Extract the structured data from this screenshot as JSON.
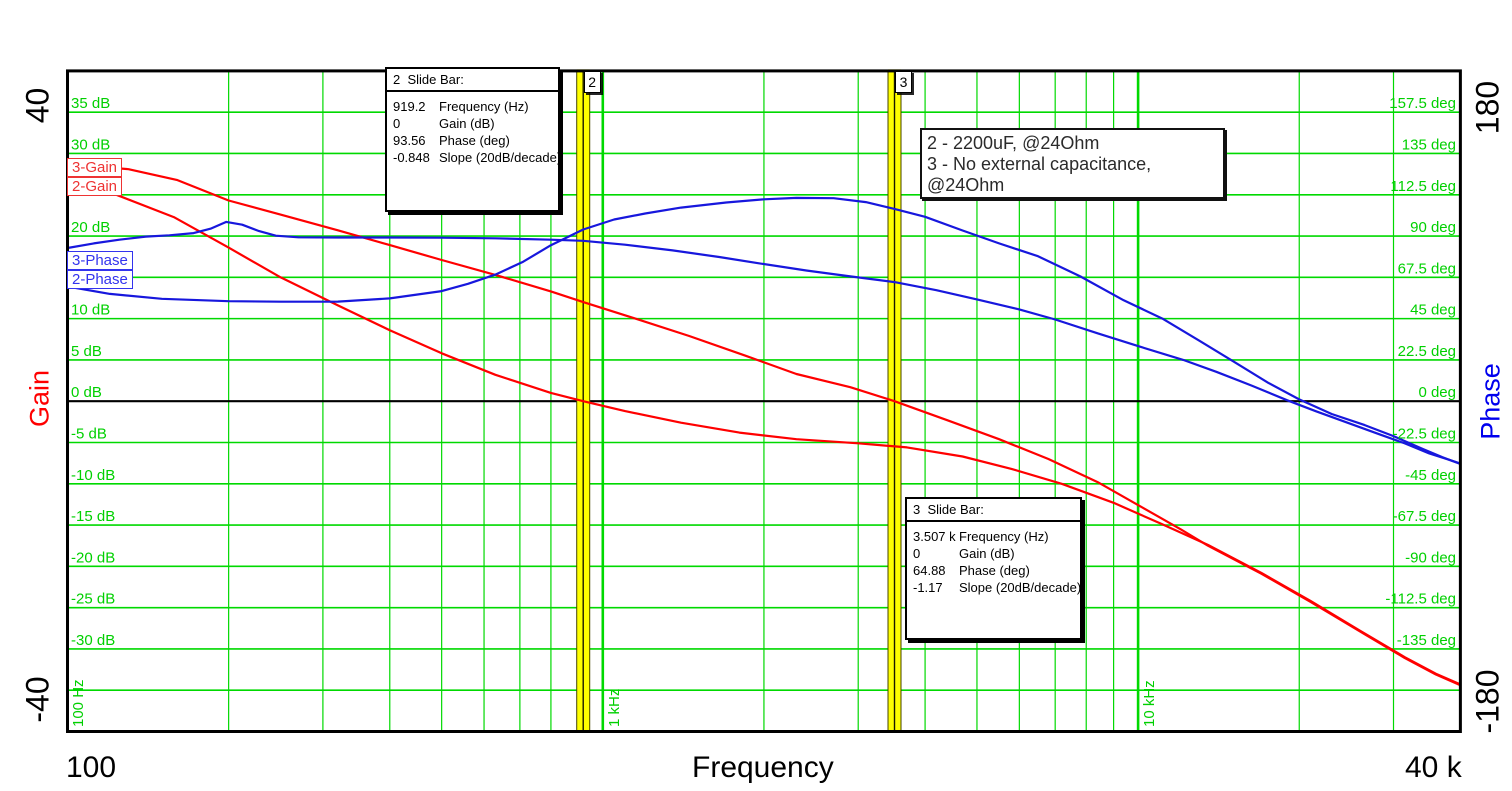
{
  "colors": {
    "grid_green": "#00d900",
    "tick_text_green": "#00d000",
    "gain_red": "#ff0000",
    "phase_blue": "#1717dd",
    "zero_line_black": "#000000",
    "slide_bar_yellow": "#ffff00",
    "background": "#ffffff"
  },
  "axes": {
    "gain": {
      "title": "Gain",
      "top_corner": "40",
      "bottom_corner": "-40",
      "min": -40,
      "max": 40
    },
    "phase": {
      "title": "Phase",
      "top_corner": "180",
      "bottom_corner": "-180",
      "min": -180,
      "max": 180
    },
    "freq": {
      "title": "Frequency",
      "left_label": "100",
      "right_label": "40 k",
      "min_hz": 100,
      "max_hz": 40000
    }
  },
  "chart_data": {
    "type": "line",
    "x_scale": "log",
    "x_range_hz": [
      100,
      40000
    ],
    "left_axis": {
      "label": "Gain",
      "units": "dB",
      "range": [
        -40,
        40
      ],
      "grid_step": 5
    },
    "right_axis": {
      "label": "Phase",
      "units": "deg",
      "range": [
        -180,
        180
      ],
      "grid_step": 22.5
    },
    "grid": {
      "h_lines_db": [
        35,
        30,
        25,
        20,
        15,
        10,
        5,
        0,
        -5,
        -10,
        -15,
        -20,
        -25,
        -30,
        -35
      ],
      "v_minor_hz": [
        200,
        300,
        400,
        500,
        600,
        700,
        800,
        900,
        2000,
        3000,
        4000,
        5000,
        6000,
        7000,
        8000,
        9000,
        20000,
        30000
      ],
      "v_major_hz": [
        1000,
        10000
      ]
    },
    "gain_tick_labels": [
      {
        "db": 35,
        "t": "35 dB"
      },
      {
        "db": 30,
        "t": "30 dB"
      },
      {
        "db": 25,
        "t": "25 dB"
      },
      {
        "db": 20,
        "t": "20 dB"
      },
      {
        "db": 15,
        "t": "15 dB"
      },
      {
        "db": 10,
        "t": "10 dB"
      },
      {
        "db": 5,
        "t": "5 dB"
      },
      {
        "db": 0,
        "t": "0 dB"
      },
      {
        "db": -5,
        "t": "-5 dB"
      },
      {
        "db": -10,
        "t": "-10 dB"
      },
      {
        "db": -15,
        "t": "-15 dB"
      },
      {
        "db": -20,
        "t": "-20 dB"
      },
      {
        "db": -25,
        "t": "-25 dB"
      },
      {
        "db": -30,
        "t": "-30 dB"
      }
    ],
    "phase_tick_labels": [
      {
        "deg": 157.5,
        "t": "157.5 deg"
      },
      {
        "deg": 135,
        "t": "135 deg"
      },
      {
        "deg": 112.5,
        "t": "112.5 deg"
      },
      {
        "deg": 90,
        "t": "90 deg"
      },
      {
        "deg": 67.5,
        "t": "67.5 deg"
      },
      {
        "deg": 45,
        "t": "45 deg"
      },
      {
        "deg": 22.5,
        "t": "22.5 deg"
      },
      {
        "deg": 0,
        "t": "0 deg"
      },
      {
        "deg": -22.5,
        "t": "-22.5 deg"
      },
      {
        "deg": -45,
        "t": "-45 deg"
      },
      {
        "deg": -67.5,
        "t": "-67.5 deg"
      },
      {
        "deg": -90,
        "t": "-90 deg"
      },
      {
        "deg": -112.5,
        "t": "-112.5 deg"
      },
      {
        "deg": -135,
        "t": "-135 deg"
      }
    ],
    "freq_line_labels": [
      {
        "hz": 100,
        "t": "100 Hz"
      },
      {
        "hz": 1000,
        "t": "1 kHz"
      },
      {
        "hz": 10000,
        "t": "10 kHz"
      }
    ],
    "series": [
      {
        "id": "curve-3-gain",
        "name": "3-Gain",
        "axis": "gain",
        "color": "#ff0000",
        "points": [
          [
            100,
            28.7
          ],
          [
            130,
            28.1
          ],
          [
            160,
            26.8
          ],
          [
            200,
            24.3
          ],
          [
            250,
            22.6
          ],
          [
            320,
            20.7
          ],
          [
            400,
            18.9
          ],
          [
            500,
            17.1
          ],
          [
            630,
            15.3
          ],
          [
            800,
            13.3
          ],
          [
            919.2,
            12.0
          ],
          [
            1150,
            10.0
          ],
          [
            1450,
            7.9
          ],
          [
            1850,
            5.5
          ],
          [
            2300,
            3.3
          ],
          [
            2900,
            1.7
          ],
          [
            3507,
            0.0
          ],
          [
            4400,
            -2.3
          ],
          [
            5500,
            -4.6
          ],
          [
            6800,
            -7.0
          ],
          [
            8400,
            -9.8
          ],
          [
            10200,
            -12.9
          ],
          [
            12000,
            -15.5
          ],
          [
            13500,
            -17.5
          ],
          [
            17000,
            -20.9
          ],
          [
            21000,
            -24.3
          ],
          [
            26000,
            -27.9
          ],
          [
            31500,
            -31.1
          ],
          [
            36000,
            -33.1
          ],
          [
            40000,
            -34.4
          ]
        ]
      },
      {
        "id": "curve-2-gain",
        "name": "2-Gain",
        "axis": "gain",
        "color": "#ff0000",
        "points": [
          [
            100,
            26.3
          ],
          [
            120,
            25.3
          ],
          [
            158,
            22.3
          ],
          [
            200,
            18.6
          ],
          [
            250,
            15.0
          ],
          [
            320,
            11.6
          ],
          [
            400,
            8.6
          ],
          [
            500,
            5.8
          ],
          [
            630,
            3.2
          ],
          [
            800,
            1.0
          ],
          [
            919.2,
            0.0
          ],
          [
            1100,
            -1.2
          ],
          [
            1400,
            -2.6
          ],
          [
            1800,
            -3.8
          ],
          [
            2300,
            -4.6
          ],
          [
            3000,
            -5.1
          ],
          [
            3700,
            -5.6
          ],
          [
            4700,
            -6.7
          ],
          [
            5800,
            -8.2
          ],
          [
            7200,
            -10.0
          ],
          [
            9000,
            -12.3
          ],
          [
            11000,
            -14.8
          ],
          [
            13500,
            -17.4
          ],
          [
            17000,
            -20.8
          ],
          [
            21000,
            -24.2
          ],
          [
            26000,
            -27.8
          ],
          [
            31500,
            -31.0
          ],
          [
            36000,
            -33.0
          ],
          [
            40000,
            -34.3
          ]
        ]
      },
      {
        "id": "curve-3-phase",
        "name": "3-Phase",
        "axis": "phase",
        "color": "#1717dd",
        "points": [
          [
            100,
            83.5
          ],
          [
            112,
            86.0
          ],
          [
            125,
            88.0
          ],
          [
            140,
            89.7
          ],
          [
            155,
            90.4
          ],
          [
            172,
            91.6
          ],
          [
            185,
            94.0
          ],
          [
            198,
            97.7
          ],
          [
            212,
            96.2
          ],
          [
            228,
            92.7
          ],
          [
            245,
            90.2
          ],
          [
            270,
            89.3
          ],
          [
            320,
            89.2
          ],
          [
            400,
            89.2
          ],
          [
            500,
            89.1
          ],
          [
            630,
            88.8
          ],
          [
            800,
            88.0
          ],
          [
            919.2,
            87.4
          ],
          [
            1100,
            85.3
          ],
          [
            1350,
            82.2
          ],
          [
            1650,
            78.6
          ],
          [
            1950,
            75.2
          ],
          [
            2400,
            71.2
          ],
          [
            2900,
            68.0
          ],
          [
            3507,
            64.88
          ],
          [
            4200,
            60.5
          ],
          [
            5000,
            55.5
          ],
          [
            6000,
            50.0
          ],
          [
            7000,
            44.5
          ],
          [
            8400,
            37.0
          ],
          [
            10000,
            30.0
          ],
          [
            12140,
            22.5
          ],
          [
            14000,
            16.0
          ],
          [
            16300,
            8.5
          ],
          [
            19000,
            0.5
          ],
          [
            21500,
            -5.5
          ],
          [
            24500,
            -11.5
          ],
          [
            28200,
            -18.0
          ],
          [
            31500,
            -23.0
          ],
          [
            35000,
            -28.5
          ],
          [
            38000,
            -31.8
          ],
          [
            40000,
            -34.0
          ]
        ]
      },
      {
        "id": "curve-2-phase",
        "name": "2-Phase",
        "axis": "phase",
        "color": "#1717dd",
        "points": [
          [
            100,
            62.5
          ],
          [
            120,
            58.5
          ],
          [
            150,
            55.8
          ],
          [
            200,
            54.5
          ],
          [
            250,
            54.2
          ],
          [
            320,
            54.3
          ],
          [
            400,
            56.0
          ],
          [
            500,
            60.0
          ],
          [
            560,
            64.0
          ],
          [
            630,
            69.0
          ],
          [
            710,
            76.0
          ],
          [
            800,
            85.0
          ],
          [
            919.2,
            93.56
          ],
          [
            1050,
            99.0
          ],
          [
            1200,
            102.3
          ],
          [
            1400,
            105.5
          ],
          [
            1700,
            108.3
          ],
          [
            2000,
            110.0
          ],
          [
            2300,
            110.8
          ],
          [
            2700,
            110.6
          ],
          [
            3100,
            108.5
          ],
          [
            3507,
            104.8
          ],
          [
            4000,
            100.5
          ],
          [
            4700,
            93.0
          ],
          [
            5500,
            86.0
          ],
          [
            6500,
            79.0
          ],
          [
            7800,
            68.0
          ],
          [
            9400,
            55.0
          ],
          [
            11100,
            45.0
          ],
          [
            13000,
            33.0
          ],
          [
            15000,
            22.0
          ],
          [
            17500,
            10.0
          ],
          [
            20000,
            1.0
          ],
          [
            23000,
            -7.0
          ],
          [
            26500,
            -13.0
          ],
          [
            30000,
            -19.0
          ],
          [
            34000,
            -26.0
          ],
          [
            37000,
            -30.5
          ],
          [
            40000,
            -34.2
          ]
        ]
      }
    ]
  },
  "curve_labels": [
    {
      "text": "3-Gain"
    },
    {
      "text": "2-Gain"
    },
    {
      "text": "3-Phase"
    },
    {
      "text": "2-Phase"
    }
  ],
  "slide_bars": [
    {
      "handle_label": "2",
      "freq_hz": 919.2,
      "window": {
        "title": "2  Slide Bar:",
        "rows": [
          [
            "919.2",
            "Frequency (Hz)"
          ],
          [
            "0",
            "Gain (dB)"
          ],
          [
            "93.56",
            "Phase (deg)"
          ],
          [
            "-0.848",
            "Slope (20dB/decade)"
          ]
        ]
      }
    },
    {
      "handle_label": "3",
      "freq_hz": 3507,
      "window": {
        "title": "3  Slide Bar:",
        "rows": [
          [
            "3.507 k",
            "Frequency (Hz)"
          ],
          [
            "0",
            "Gain (dB)"
          ],
          [
            "64.88",
            "Phase (deg)"
          ],
          [
            "-1.17",
            "Slope (20dB/decade)"
          ]
        ]
      }
    }
  ],
  "legend": {
    "lines": [
      "2 - 2200uF, @24Ohm",
      "3 - No external capacitance, @24Ohm"
    ]
  }
}
